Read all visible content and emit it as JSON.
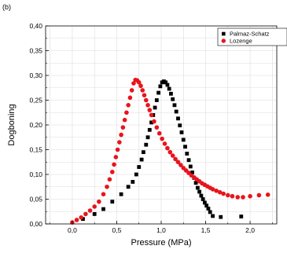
{
  "panel_label": "(b)",
  "chart_data": {
    "type": "scatter",
    "xlabel": "Pressure (MPa)",
    "ylabel": "Dogboning",
    "xlim": [
      -0.3,
      2.3
    ],
    "ylim": [
      0.0,
      0.4
    ],
    "xticks": [
      0.0,
      0.5,
      1.0,
      1.5,
      2.0
    ],
    "xtick_labels": [
      "0,0",
      "0,5",
      "1,0",
      "1,5",
      "2,0"
    ],
    "yticks": [
      0.0,
      0.05,
      0.1,
      0.15,
      0.2,
      0.25,
      0.3,
      0.35,
      0.4
    ],
    "ytick_labels": [
      "0,00",
      "0,05",
      "0,10",
      "0,15",
      "0,20",
      "0,25",
      "0,30",
      "0,35",
      "0,40"
    ],
    "grid": true,
    "legend_position": "top-right",
    "series": [
      {
        "name": "Palmaz-Schatz",
        "marker": "square",
        "color": "#000000",
        "points": [
          [
            0.12,
            0.01
          ],
          [
            0.25,
            0.02
          ],
          [
            0.35,
            0.03
          ],
          [
            0.45,
            0.045
          ],
          [
            0.55,
            0.06
          ],
          [
            0.63,
            0.075
          ],
          [
            0.68,
            0.085
          ],
          [
            0.72,
            0.1
          ],
          [
            0.75,
            0.115
          ],
          [
            0.78,
            0.13
          ],
          [
            0.8,
            0.145
          ],
          [
            0.83,
            0.16
          ],
          [
            0.85,
            0.175
          ],
          [
            0.87,
            0.19
          ],
          [
            0.89,
            0.205
          ],
          [
            0.91,
            0.22
          ],
          [
            0.93,
            0.235
          ],
          [
            0.95,
            0.25
          ],
          [
            0.97,
            0.265
          ],
          [
            0.99,
            0.278
          ],
          [
            1.01,
            0.286
          ],
          [
            1.03,
            0.288
          ],
          [
            1.05,
            0.286
          ],
          [
            1.07,
            0.281
          ],
          [
            1.09,
            0.273
          ],
          [
            1.11,
            0.263
          ],
          [
            1.13,
            0.252
          ],
          [
            1.15,
            0.24
          ],
          [
            1.17,
            0.227
          ],
          [
            1.19,
            0.213
          ],
          [
            1.21,
            0.199
          ],
          [
            1.23,
            0.185
          ],
          [
            1.25,
            0.17
          ],
          [
            1.27,
            0.156
          ],
          [
            1.29,
            0.142
          ],
          [
            1.31,
            0.129
          ],
          [
            1.33,
            0.116
          ],
          [
            1.35,
            0.104
          ],
          [
            1.37,
            0.093
          ],
          [
            1.39,
            0.083
          ],
          [
            1.41,
            0.073
          ],
          [
            1.43,
            0.065
          ],
          [
            1.45,
            0.057
          ],
          [
            1.47,
            0.05
          ],
          [
            1.49,
            0.043
          ],
          [
            1.51,
            0.037
          ],
          [
            1.53,
            0.031
          ],
          [
            1.55,
            0.024
          ],
          [
            1.58,
            0.016
          ],
          [
            1.67,
            0.014
          ],
          [
            1.9,
            0.015
          ]
        ]
      },
      {
        "name": "Lozenge",
        "marker": "circle",
        "color": "#e8141c",
        "points": [
          [
            0.0,
            0.003
          ],
          [
            0.05,
            0.008
          ],
          [
            0.1,
            0.013
          ],
          [
            0.15,
            0.02
          ],
          [
            0.2,
            0.027
          ],
          [
            0.25,
            0.035
          ],
          [
            0.3,
            0.045
          ],
          [
            0.35,
            0.06
          ],
          [
            0.39,
            0.075
          ],
          [
            0.42,
            0.09
          ],
          [
            0.45,
            0.105
          ],
          [
            0.47,
            0.12
          ],
          [
            0.49,
            0.135
          ],
          [
            0.51,
            0.15
          ],
          [
            0.53,
            0.165
          ],
          [
            0.55,
            0.18
          ],
          [
            0.57,
            0.195
          ],
          [
            0.59,
            0.21
          ],
          [
            0.61,
            0.225
          ],
          [
            0.63,
            0.24
          ],
          [
            0.65,
            0.255
          ],
          [
            0.67,
            0.27
          ],
          [
            0.69,
            0.284
          ],
          [
            0.71,
            0.291
          ],
          [
            0.73,
            0.29
          ],
          [
            0.75,
            0.286
          ],
          [
            0.77,
            0.279
          ],
          [
            0.79,
            0.27
          ],
          [
            0.81,
            0.26
          ],
          [
            0.83,
            0.25
          ],
          [
            0.85,
            0.24
          ],
          [
            0.87,
            0.23
          ],
          [
            0.89,
            0.22
          ],
          [
            0.92,
            0.207
          ],
          [
            0.95,
            0.195
          ],
          [
            0.98,
            0.183
          ],
          [
            1.01,
            0.172
          ],
          [
            1.04,
            0.162
          ],
          [
            1.07,
            0.153
          ],
          [
            1.1,
            0.145
          ],
          [
            1.13,
            0.138
          ],
          [
            1.16,
            0.131
          ],
          [
            1.19,
            0.125
          ],
          [
            1.22,
            0.119
          ],
          [
            1.25,
            0.113
          ],
          [
            1.28,
            0.108
          ],
          [
            1.31,
            0.103
          ],
          [
            1.34,
            0.098
          ],
          [
            1.37,
            0.094
          ],
          [
            1.4,
            0.09
          ],
          [
            1.43,
            0.086
          ],
          [
            1.46,
            0.082
          ],
          [
            1.49,
            0.079
          ],
          [
            1.52,
            0.076
          ],
          [
            1.55,
            0.073
          ],
          [
            1.58,
            0.07
          ],
          [
            1.62,
            0.067
          ],
          [
            1.66,
            0.064
          ],
          [
            1.7,
            0.061
          ],
          [
            1.75,
            0.058
          ],
          [
            1.8,
            0.056
          ],
          [
            1.86,
            0.054
          ],
          [
            1.92,
            0.054
          ],
          [
            2.0,
            0.056
          ],
          [
            2.1,
            0.058
          ],
          [
            2.2,
            0.059
          ]
        ]
      }
    ]
  }
}
